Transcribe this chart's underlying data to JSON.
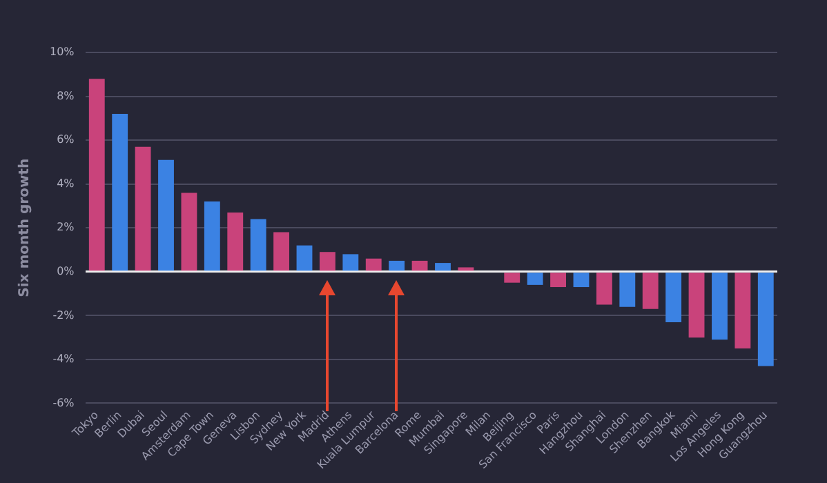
{
  "chart_data": {
    "type": "bar",
    "ylabel": "Six month growth",
    "categories": [
      "Tokyo",
      "Berlin",
      "Dubai",
      "Seoul",
      "Amsterdam",
      "Cape Town",
      "Geneva",
      "Lisbon",
      "Sydney",
      "New York",
      "Madrid",
      "Athens",
      "Kuala Lumpur",
      "Barcelona",
      "Rome",
      "Mumbai",
      "Singapore",
      "Milan",
      "Beijing",
      "San Francisco",
      "Paris",
      "Hangzhou",
      "Shanghai",
      "London",
      "Shenzhen",
      "Bangkok",
      "Miami",
      "Los Angeles",
      "Hong Kong",
      "Guangzhou"
    ],
    "values": [
      8.8,
      7.2,
      5.7,
      5.1,
      3.6,
      3.2,
      2.7,
      2.4,
      1.8,
      1.2,
      0.9,
      0.8,
      0.6,
      0.5,
      0.5,
      0.4,
      0.2,
      0,
      -0.5,
      -0.6,
      -0.7,
      -0.7,
      -1.5,
      -1.6,
      -1.7,
      -2.3,
      -3.0,
      -3.1,
      -3.5,
      -4.3
    ],
    "colors": [
      "#c9437b",
      "#3b82e3",
      "#c9437b",
      "#3b82e3",
      "#c9437b",
      "#3b82e3",
      "#c9437b",
      "#3b82e3",
      "#c9437b",
      "#3b82e3",
      "#c9437b",
      "#3b82e3",
      "#c9437b",
      "#3b82e3",
      "#c9437b",
      "#3b82e3",
      "#c9437b",
      "#3b82e3",
      "#c9437b",
      "#3b82e3",
      "#c9437b",
      "#3b82e3",
      "#c9437b",
      "#3b82e3",
      "#c9437b",
      "#3b82e3",
      "#c9437b",
      "#3b82e3",
      "#c9437b",
      "#3b82e3"
    ],
    "ylim": [
      -6,
      10
    ],
    "yticks": [
      {
        "value": -6,
        "label": "-6%"
      },
      {
        "value": -4,
        "label": "-4%"
      },
      {
        "value": -2,
        "label": "-2%"
      },
      {
        "value": 0,
        "label": "0%"
      },
      {
        "value": 2,
        "label": "2%"
      },
      {
        "value": 4,
        "label": "4%"
      },
      {
        "value": 6,
        "label": "6%"
      },
      {
        "value": 8,
        "label": "8%"
      },
      {
        "value": 10,
        "label": "10%"
      }
    ],
    "grid": "y",
    "legend": false
  }
}
